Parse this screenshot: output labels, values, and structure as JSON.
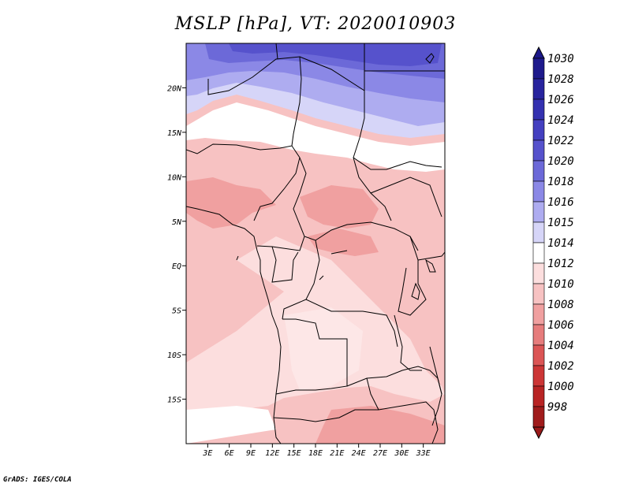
{
  "title": "MSLP [hPa], VT: 2020010903",
  "footer": "GrADS: IGES/COLA",
  "map": {
    "lon_range": [
      0,
      36
    ],
    "lat_range": [
      -20,
      25
    ],
    "lon_ticks": [
      {
        "value": 3,
        "label": "3E"
      },
      {
        "value": 6,
        "label": "6E"
      },
      {
        "value": 9,
        "label": "9E"
      },
      {
        "value": 12,
        "label": "12E"
      },
      {
        "value": 15,
        "label": "15E"
      },
      {
        "value": 18,
        "label": "18E"
      },
      {
        "value": 21,
        "label": "21E"
      },
      {
        "value": 24,
        "label": "24E"
      },
      {
        "value": 27,
        "label": "27E"
      },
      {
        "value": 30,
        "label": "30E"
      },
      {
        "value": 33,
        "label": "33E"
      }
    ],
    "lat_ticks": [
      {
        "value": 20,
        "label": "20N"
      },
      {
        "value": 15,
        "label": "15N"
      },
      {
        "value": 10,
        "label": "10N"
      },
      {
        "value": 5,
        "label": "5N"
      },
      {
        "value": 0,
        "label": "EQ"
      },
      {
        "value": -5,
        "label": "5S"
      },
      {
        "value": -10,
        "label": "10S"
      },
      {
        "value": -15,
        "label": "15S"
      }
    ]
  },
  "colorbar": {
    "levels": [
      {
        "label": "1030",
        "color": "#1e1a8c"
      },
      {
        "label": "1028",
        "color": "#28249e"
      },
      {
        "label": "1026",
        "color": "#3431b0"
      },
      {
        "label": "1024",
        "color": "#4440c0"
      },
      {
        "label": "1022",
        "color": "#5652cc"
      },
      {
        "label": "1020",
        "color": "#6c69d8"
      },
      {
        "label": "1018",
        "color": "#8b88e6"
      },
      {
        "label": "1016",
        "color": "#aeacf0"
      },
      {
        "label": "1015",
        "color": "#d6d5f8"
      },
      {
        "label": "1014",
        "color": "#ffffff"
      },
      {
        "label": "1012",
        "color": "#fcdede"
      },
      {
        "label": "1010",
        "color": "#f7c2c2"
      },
      {
        "label": "1008",
        "color": "#f0a0a0"
      },
      {
        "label": "1006",
        "color": "#e67c7c"
      },
      {
        "label": "1004",
        "color": "#db5555"
      },
      {
        "label": "1002",
        "color": "#cc3636"
      },
      {
        "label": "1000",
        "color": "#b82424"
      },
      {
        "label": "998",
        "color": "#a01c1c"
      }
    ],
    "top_color": "#1c188a",
    "bottom_color": "#9a1a1a"
  }
}
